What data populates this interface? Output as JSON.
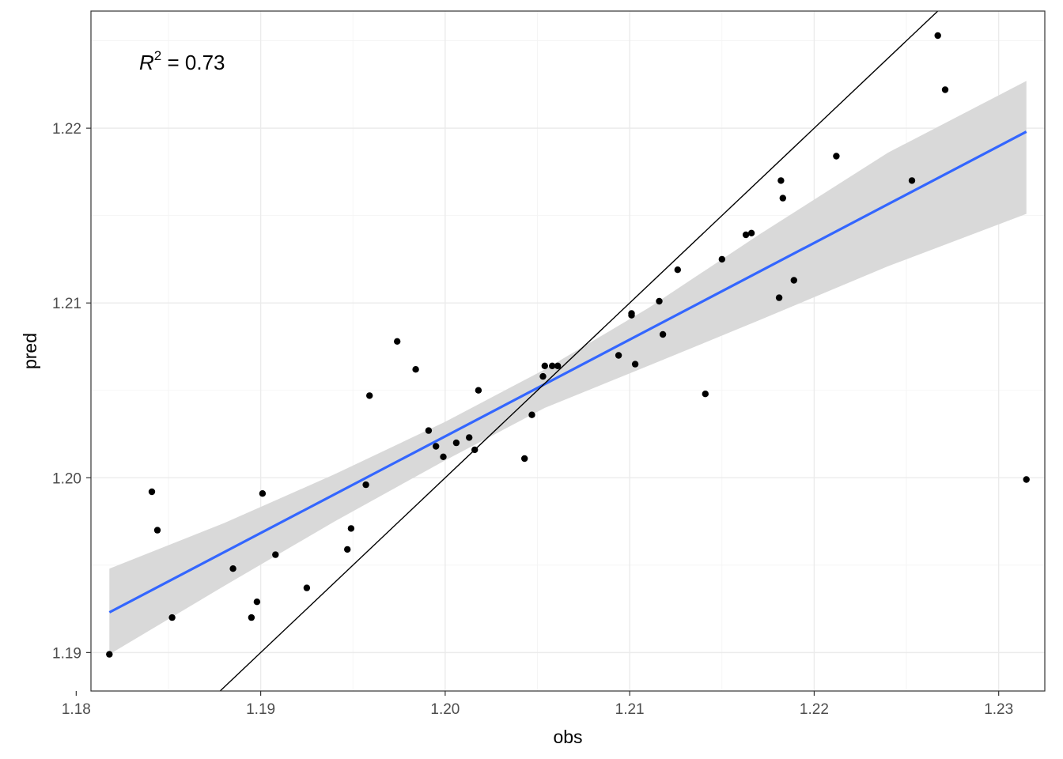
{
  "chart_data": {
    "type": "scatter",
    "xlabel": "obs",
    "ylabel": "pred",
    "xlim": [
      1.1808,
      1.2325
    ],
    "ylim": [
      1.1878,
      1.2267
    ],
    "x_ticks": [
      1.18,
      1.19,
      1.2,
      1.21,
      1.22,
      1.23
    ],
    "x_tick_labels": [
      "1.18",
      "1.19",
      "1.20",
      "1.21",
      "1.22",
      "1.23"
    ],
    "y_ticks": [
      1.19,
      1.2,
      1.21,
      1.22
    ],
    "y_tick_labels": [
      "1.19",
      "1.20",
      "1.21",
      "1.22"
    ],
    "grid": true,
    "annotation": {
      "symbol": "R",
      "superscript": "2",
      "text": " = 0.73"
    },
    "points": [
      [
        1.1818,
        1.1899
      ],
      [
        1.1841,
        1.1992
      ],
      [
        1.1844,
        1.197
      ],
      [
        1.1852,
        1.192
      ],
      [
        1.1885,
        1.1948
      ],
      [
        1.1895,
        1.192
      ],
      [
        1.1898,
        1.1929
      ],
      [
        1.1901,
        1.1991
      ],
      [
        1.1908,
        1.1956
      ],
      [
        1.1925,
        1.1937
      ],
      [
        1.1947,
        1.1959
      ],
      [
        1.1949,
        1.1971
      ],
      [
        1.1957,
        1.1996
      ],
      [
        1.1959,
        1.2047
      ],
      [
        1.1974,
        1.2078
      ],
      [
        1.1984,
        1.2062
      ],
      [
        1.1991,
        1.2027
      ],
      [
        1.1995,
        1.2018
      ],
      [
        1.1999,
        1.2012
      ],
      [
        1.2006,
        1.202
      ],
      [
        1.2013,
        1.2023
      ],
      [
        1.2016,
        1.2016
      ],
      [
        1.2018,
        1.205
      ],
      [
        1.2043,
        1.2011
      ],
      [
        1.2047,
        1.2036
      ],
      [
        1.2053,
        1.2058
      ],
      [
        1.2054,
        1.2064
      ],
      [
        1.2058,
        1.2064
      ],
      [
        1.2061,
        1.2064
      ],
      [
        1.2094,
        1.207
      ],
      [
        1.2101,
        1.2094
      ],
      [
        1.2101,
        1.2093
      ],
      [
        1.2103,
        1.2065
      ],
      [
        1.2116,
        1.2101
      ],
      [
        1.2118,
        1.2082
      ],
      [
        1.2126,
        1.2119
      ],
      [
        1.2141,
        1.2048
      ],
      [
        1.215,
        1.2125
      ],
      [
        1.2163,
        1.2139
      ],
      [
        1.2166,
        1.214
      ],
      [
        1.2181,
        1.2103
      ],
      [
        1.2182,
        1.217
      ],
      [
        1.2183,
        1.216
      ],
      [
        1.2189,
        1.2113
      ],
      [
        1.2212,
        1.2184
      ],
      [
        1.2253,
        1.217
      ],
      [
        1.2267,
        1.2253
      ],
      [
        1.2271,
        1.2222
      ],
      [
        1.2315,
        1.1999
      ]
    ],
    "fit": {
      "x": [
        1.1818,
        1.2315
      ],
      "y": [
        1.1923,
        1.2198
      ],
      "color": "#3366FF"
    },
    "confidence_band": {
      "x": [
        1.1818,
        1.188,
        1.194,
        1.2,
        1.2054,
        1.211,
        1.217,
        1.224,
        1.2315
      ],
      "lower": [
        1.1899,
        1.1938,
        1.1975,
        1.201,
        1.204,
        1.2064,
        1.209,
        1.2121,
        1.2151
      ],
      "upper": [
        1.1948,
        1.1974,
        1.2002,
        1.2032,
        1.2062,
        1.2097,
        1.2139,
        1.2186,
        1.2227
      ],
      "color": "#d9d9d9"
    },
    "identity_line": {
      "slope": 1,
      "intercept": 0,
      "color": "#000000"
    },
    "point_color": "#000000"
  }
}
